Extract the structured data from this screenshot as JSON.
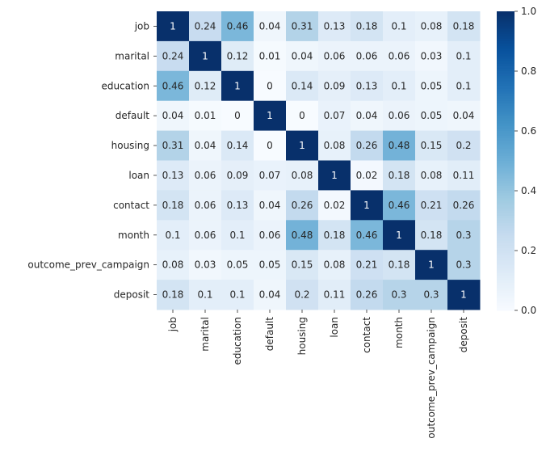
{
  "chart_data": {
    "type": "heatmap",
    "title": "",
    "xlabel": "",
    "ylabel": "",
    "categories": [
      "job",
      "marital",
      "education",
      "default",
      "housing",
      "loan",
      "contact",
      "month",
      "outcome_prev_campaign",
      "deposit"
    ],
    "matrix": [
      [
        1,
        0.24,
        0.46,
        0.04,
        0.31,
        0.13,
        0.18,
        0.1,
        0.08,
        0.18
      ],
      [
        0.24,
        1,
        0.12,
        0.01,
        0.04,
        0.06,
        0.06,
        0.06,
        0.03,
        0.1
      ],
      [
        0.46,
        0.12,
        1,
        0,
        0.14,
        0.09,
        0.13,
        0.1,
        0.05,
        0.1
      ],
      [
        0.04,
        0.01,
        0,
        1,
        0,
        0.07,
        0.04,
        0.06,
        0.05,
        0.04
      ],
      [
        0.31,
        0.04,
        0.14,
        0,
        1,
        0.08,
        0.26,
        0.48,
        0.15,
        0.2
      ],
      [
        0.13,
        0.06,
        0.09,
        0.07,
        0.08,
        1,
        0.02,
        0.18,
        0.08,
        0.11
      ],
      [
        0.18,
        0.06,
        0.13,
        0.04,
        0.26,
        0.02,
        1,
        0.46,
        0.21,
        0.26
      ],
      [
        0.1,
        0.06,
        0.1,
        0.06,
        0.48,
        0.18,
        0.46,
        1,
        0.18,
        0.3
      ],
      [
        0.08,
        0.03,
        0.05,
        0.05,
        0.15,
        0.08,
        0.21,
        0.18,
        1,
        0.3
      ],
      [
        0.18,
        0.1,
        0.1,
        0.04,
        0.2,
        0.11,
        0.26,
        0.3,
        0.3,
        1
      ]
    ],
    "colormap": "Blues",
    "colorbar": {
      "range": [
        0,
        1
      ],
      "ticks": [
        "0.0",
        "0.2",
        "0.4",
        "0.6",
        "0.8",
        "1.0"
      ]
    },
    "annotations": true,
    "grid": false
  }
}
